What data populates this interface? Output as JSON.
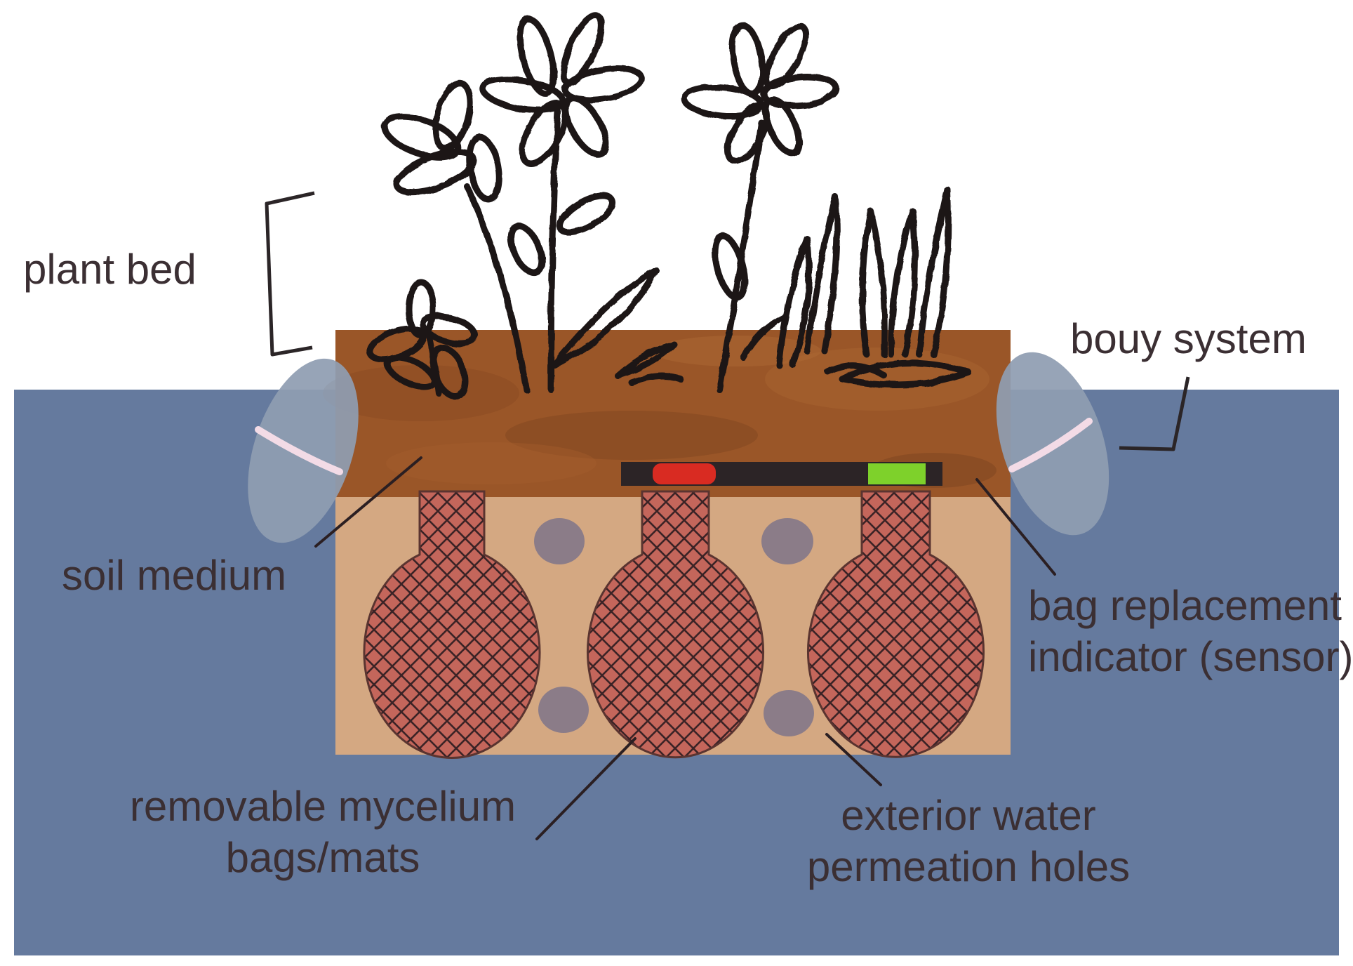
{
  "colors": {
    "water": "#657a9e",
    "soil": "#9a5628",
    "soil_dark": "#7e4420",
    "chamber": "#d4a882",
    "bag_fill": "#c4665b",
    "bag_mesh": "#3b2326",
    "hole": "#8b7c88",
    "buoy": "#8f9db2",
    "buoy_band": "#f3dbe6",
    "sensor_bar": "#2c2426",
    "sensor_red": "#d92b22",
    "sensor_green": "#7ed12b",
    "ink": "#1c1718",
    "label_text": "#3b2f33"
  },
  "labels": {
    "plant_bed": "plant bed",
    "bouy_system": "bouy system",
    "soil_medium": "soil medium",
    "bag_replacement_line1": "bag replacement",
    "bag_replacement_line2": "indicator (sensor)",
    "mycelium_line1": "removable mycelium",
    "mycelium_line2": "bags/mats",
    "water_holes_line1": "exterior water",
    "water_holes_line2": "permeation holes"
  },
  "icons": {
    "flowers": "flower-doodle-icon",
    "buoy": "buoy-icon",
    "bag": "mesh-bag-icon",
    "hole": "permeation-hole-icon",
    "sensor": "sensor-indicator-icon"
  }
}
